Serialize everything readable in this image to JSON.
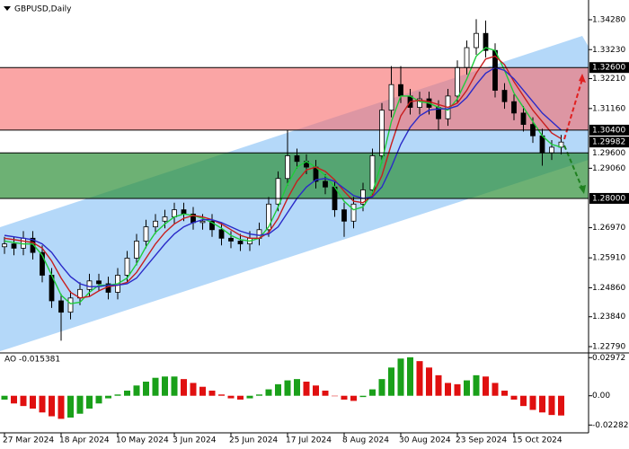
{
  "chart_data": {
    "type": "candlestick",
    "title": "GBPUSD,Daily",
    "categories": [
      "27 Mar 2024",
      null,
      null,
      null,
      null,
      null,
      "18 Apr 2024",
      null,
      null,
      null,
      null,
      null,
      "10 May 2024",
      null,
      null,
      null,
      null,
      null,
      "3 Jun 2024",
      null,
      null,
      null,
      null,
      null,
      "25 Jun 2024",
      null,
      null,
      null,
      null,
      null,
      "17 Jul 2024",
      null,
      null,
      null,
      null,
      null,
      "8 Aug 2024",
      null,
      null,
      null,
      null,
      null,
      "30 Aug 2024",
      null,
      null,
      null,
      null,
      null,
      "23 Sep 2024",
      null,
      null,
      null,
      null,
      null,
      "15 Oct 2024",
      null,
      null,
      null,
      null,
      null
    ],
    "open": [
      1.263,
      1.264,
      1.2625,
      1.266,
      1.261,
      1.253,
      1.244,
      1.24,
      1.245,
      1.248,
      1.251,
      1.25,
      1.247,
      1.253,
      1.259,
      1.265,
      1.27,
      1.272,
      1.2735,
      1.276,
      1.2745,
      1.2715,
      1.272,
      1.269,
      1.266,
      1.265,
      1.264,
      1.266,
      1.269,
      1.278,
      1.287,
      1.295,
      1.293,
      1.291,
      1.286,
      1.284,
      1.276,
      1.272,
      1.278,
      1.283,
      1.295,
      1.311,
      1.32,
      1.316,
      1.312,
      1.315,
      1.312,
      1.308,
      1.316,
      1.326,
      1.333,
      1.338,
      1.332,
      1.318,
      1.314,
      1.31,
      1.306,
      1.302,
      1.296,
      1.298
    ],
    "high": [
      1.2665,
      1.2665,
      1.2685,
      1.2685,
      1.2635,
      1.2555,
      1.2465,
      1.2475,
      1.2505,
      1.2535,
      1.2535,
      1.2525,
      1.2555,
      1.2615,
      1.2675,
      1.2725,
      1.2745,
      1.276,
      1.2785,
      1.2785,
      1.277,
      1.2745,
      1.2745,
      1.2715,
      1.2685,
      1.2675,
      1.2685,
      1.2715,
      1.2805,
      1.2895,
      1.304,
      1.2975,
      1.2955,
      1.2935,
      1.2885,
      1.2865,
      1.2785,
      1.2805,
      1.2855,
      1.2975,
      1.3135,
      1.3265,
      1.3265,
      1.3185,
      1.3175,
      1.3175,
      1.3145,
      1.3185,
      1.3285,
      1.3355,
      1.343,
      1.3425,
      1.3345,
      1.3205,
      1.3165,
      1.3125,
      1.3085,
      1.3045,
      1.3005,
      1.3023
    ],
    "low": [
      1.2605,
      1.26,
      1.26,
      1.2585,
      1.2505,
      1.2415,
      1.23,
      1.2375,
      1.2425,
      1.2455,
      1.2475,
      1.2445,
      1.2445,
      1.2505,
      1.2565,
      1.2625,
      1.2675,
      1.2695,
      1.271,
      1.272,
      1.269,
      1.269,
      1.2665,
      1.2635,
      1.2625,
      1.2615,
      1.2615,
      1.2635,
      1.2665,
      1.2755,
      1.2845,
      1.2905,
      1.2885,
      1.2835,
      1.2815,
      1.2735,
      1.2665,
      1.2695,
      1.2755,
      1.2805,
      1.2925,
      1.3085,
      1.3135,
      1.3095,
      1.3095,
      1.3095,
      1.304,
      1.3055,
      1.3135,
      1.3235,
      1.3305,
      1.3295,
      1.3155,
      1.3115,
      1.3075,
      1.3035,
      1.2995,
      1.2915,
      1.2935,
      1.2955
    ],
    "close": [
      1.264,
      1.2625,
      1.266,
      1.261,
      1.253,
      1.244,
      1.24,
      1.245,
      1.248,
      1.251,
      1.25,
      1.247,
      1.253,
      1.259,
      1.265,
      1.27,
      1.272,
      1.2735,
      1.276,
      1.2745,
      1.2715,
      1.272,
      1.269,
      1.266,
      1.265,
      1.264,
      1.266,
      1.269,
      1.278,
      1.287,
      1.295,
      1.293,
      1.291,
      1.286,
      1.284,
      1.276,
      1.272,
      1.278,
      1.283,
      1.295,
      1.311,
      1.32,
      1.316,
      1.312,
      1.315,
      1.312,
      1.308,
      1.316,
      1.326,
      1.333,
      1.338,
      1.332,
      1.318,
      1.314,
      1.31,
      1.306,
      1.302,
      1.296,
      1.298,
      1.2998
    ],
    "moving_averages": [
      {
        "color": "#1fcc3a",
        "values": [
          1.265,
          1.2645,
          1.264,
          1.264,
          1.26,
          1.253,
          1.246,
          1.243,
          1.2435,
          1.247,
          1.2495,
          1.2495,
          1.25,
          1.252,
          1.257,
          1.263,
          1.268,
          1.271,
          1.2735,
          1.2745,
          1.274,
          1.273,
          1.2715,
          1.2695,
          1.267,
          1.2655,
          1.265,
          1.266,
          1.27,
          1.277,
          1.285,
          1.291,
          1.293,
          1.291,
          1.288,
          1.284,
          1.279,
          1.276,
          1.277,
          1.282,
          1.293,
          1.307,
          1.316,
          1.316,
          1.314,
          1.3135,
          1.312,
          1.311,
          1.315,
          1.322,
          1.33,
          1.333,
          1.332,
          1.325,
          1.317,
          1.312,
          1.307,
          1.302,
          1.299,
          1.298
        ]
      },
      {
        "color": "#c81e1e",
        "values": [
          1.266,
          1.2655,
          1.265,
          1.2645,
          1.2625,
          1.258,
          1.252,
          1.247,
          1.245,
          1.2455,
          1.2475,
          1.249,
          1.2495,
          1.2505,
          1.254,
          1.259,
          1.264,
          1.268,
          1.271,
          1.273,
          1.274,
          1.2735,
          1.2725,
          1.271,
          1.269,
          1.267,
          1.266,
          1.266,
          1.268,
          1.273,
          1.28,
          1.286,
          1.29,
          1.291,
          1.2895,
          1.2865,
          1.2825,
          1.279,
          1.2785,
          1.281,
          1.288,
          1.299,
          1.309,
          1.314,
          1.3145,
          1.314,
          1.313,
          1.312,
          1.3135,
          1.318,
          1.324,
          1.329,
          1.33,
          1.327,
          1.321,
          1.316,
          1.311,
          1.307,
          1.303,
          1.301
        ]
      },
      {
        "color": "#2a2ac8",
        "values": [
          1.267,
          1.2665,
          1.266,
          1.2655,
          1.264,
          1.261,
          1.2565,
          1.2525,
          1.25,
          1.249,
          1.249,
          1.2495,
          1.2495,
          1.25,
          1.252,
          1.256,
          1.26,
          1.264,
          1.2675,
          1.27,
          1.2715,
          1.2725,
          1.2725,
          1.2715,
          1.27,
          1.2685,
          1.2675,
          1.267,
          1.2675,
          1.27,
          1.275,
          1.28,
          1.284,
          1.2865,
          1.287,
          1.286,
          1.2835,
          1.281,
          1.28,
          1.2805,
          1.284,
          1.291,
          1.299,
          1.305,
          1.309,
          1.311,
          1.3115,
          1.3115,
          1.3125,
          1.3155,
          1.32,
          1.324,
          1.326,
          1.325,
          1.322,
          1.318,
          1.314,
          1.31,
          1.307,
          1.304
        ]
      }
    ],
    "ylim": [
      1.22569,
      1.34974
    ],
    "yticks": [
      {
        "value": 1.3428,
        "label": "1.34280"
      },
      {
        "value": 1.3323,
        "label": "1.33230"
      },
      {
        "value": 1.3221,
        "label": "1.32210"
      },
      {
        "value": 1.3116,
        "label": "1.31160"
      },
      {
        "value": 1.2906,
        "label": "1.29060"
      },
      {
        "value": 1.2697,
        "label": "1.26970"
      },
      {
        "value": 1.2591,
        "label": "1.25910"
      },
      {
        "value": 1.2486,
        "label": "1.24860"
      },
      {
        "value": 1.2384,
        "label": "1.23840"
      },
      {
        "value": 1.2279,
        "label": "1.22790"
      }
    ],
    "levels": [
      {
        "value": 1.326,
        "label": "1.32600",
        "boxed": true,
        "line": true
      },
      {
        "value": 1.304,
        "label": "1.30400",
        "boxed": true,
        "line": true
      },
      {
        "value": 1.29982,
        "label": "1.29982",
        "boxed": true,
        "line": false
      },
      {
        "value": 1.296,
        "label": "1.29600",
        "boxed": false,
        "line": true
      },
      {
        "value": 1.28,
        "label": "1.28000",
        "boxed": true,
        "line": true
      }
    ],
    "zones": [
      {
        "top": 1.326,
        "bottom": 1.304,
        "color": "rgba(247,110,110,0.62)"
      },
      {
        "top": 1.296,
        "bottom": 1.28,
        "color": "rgba(40,140,50,0.68)"
      }
    ],
    "indicator_label": "AO -0.015381",
    "ao_values": [
      -0.003,
      -0.006,
      -0.008,
      -0.01,
      -0.013,
      -0.016,
      -0.018,
      -0.017,
      -0.014,
      -0.01,
      -0.006,
      -0.002,
      0.001,
      0.004,
      0.008,
      0.011,
      0.014,
      0.015,
      0.015,
      0.013,
      0.01,
      0.007,
      0.004,
      0.001,
      -0.002,
      -0.003,
      -0.002,
      0.001,
      0.005,
      0.009,
      0.012,
      0.013,
      0.011,
      0.008,
      0.004,
      0.0,
      -0.003,
      -0.004,
      -0.001,
      0.005,
      0.013,
      0.022,
      0.029,
      0.03,
      0.027,
      0.022,
      0.016,
      0.01,
      0.009,
      0.012,
      0.016,
      0.015,
      0.01,
      0.004,
      -0.003,
      -0.008,
      -0.011,
      -0.013,
      -0.015,
      -0.015381
    ],
    "ao_colors": {
      "up": "#1aa01a",
      "down": "#e01010"
    },
    "ao_ylim": [
      -0.0275,
      0.032
    ],
    "ao_yticks": [
      {
        "value": 0.02972,
        "label": "0.02972"
      },
      {
        "value": 0,
        "label": "0.00"
      },
      {
        "value": -0.022821,
        "label": "-0.022821"
      }
    ]
  }
}
